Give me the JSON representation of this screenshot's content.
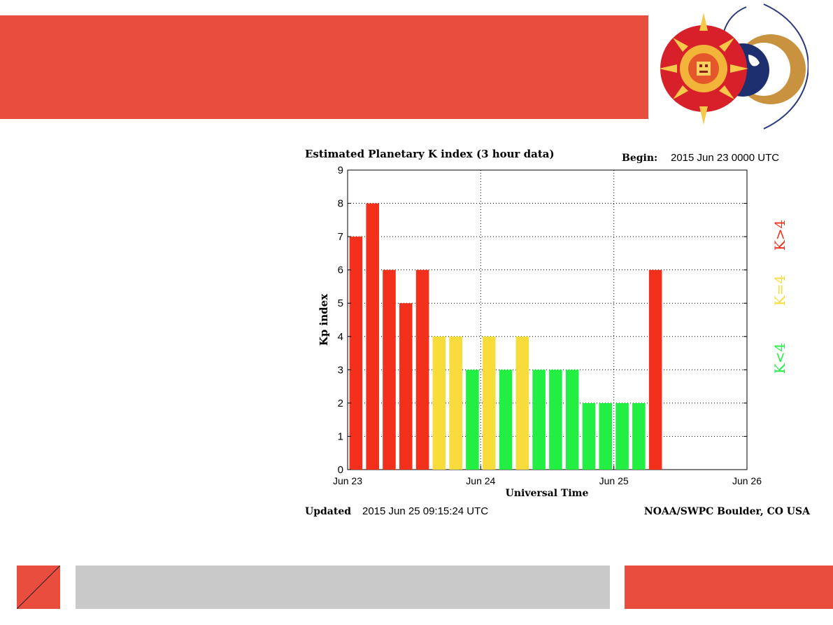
{
  "chart_data": {
    "type": "bar",
    "title": "Estimated Planetary K index (3 hour data)",
    "begin_label": "Begin:",
    "begin_value": "2015 Jun 23 0000 UTC",
    "xlabel": "Universal Time",
    "ylabel": "Kp index",
    "ylim": [
      0,
      9
    ],
    "yticks": [
      "0",
      "1",
      "2",
      "3",
      "4",
      "5",
      "6",
      "7",
      "8",
      "9"
    ],
    "xticks": [
      "Jun 23",
      "Jun 24",
      "Jun 25",
      "Jun 26"
    ],
    "x_units": "3-hour intervals from 2015 Jun 23 0000 UTC",
    "values": [
      7,
      8,
      6,
      5,
      6,
      4,
      4,
      3,
      4,
      3,
      4,
      3,
      3,
      3,
      2,
      2,
      2,
      2,
      6
    ],
    "grid": true,
    "legend": [
      {
        "label": "K<4",
        "color": "#22ee44"
      },
      {
        "label": "K=4",
        "color": "#f8dc3c"
      },
      {
        "label": "K>4",
        "color": "#f2301c"
      }
    ],
    "colors": {
      "low": "#22ee44",
      "mid": "#f8dc3c",
      "high": "#f2301c"
    },
    "updated_label": "Updated",
    "updated_value": "2015 Jun 25 09:15:24 UTC",
    "source": "NOAA/SWPC Boulder, CO USA"
  },
  "colors": {
    "accent": "#e84d3d",
    "bottom_bar": "#c9c9c9"
  },
  "logo": {
    "icon": "sun-earth-moon-logo-icon"
  }
}
